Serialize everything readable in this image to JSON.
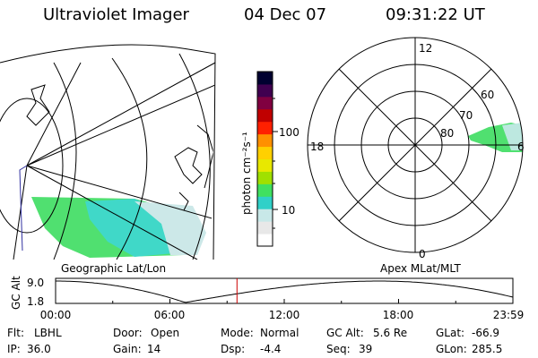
{
  "header": {
    "title": "Ultraviolet Imager",
    "date": "04 Dec 07",
    "time": "09:31:22 UT"
  },
  "colorbar": {
    "label": "photon cm⁻²s⁻¹",
    "ticks": [
      "100",
      "10"
    ],
    "scale": "log",
    "colors": [
      "#ffffff",
      "#e8e8e8",
      "#c8e8e8",
      "#30d0c8",
      "#40e060",
      "#a0e000",
      "#e8e800",
      "#ffd000",
      "#ff9000",
      "#ff2000",
      "#c00000",
      "#800040",
      "#400050",
      "#000030"
    ]
  },
  "geo_panel": {
    "label": "Geographic Lat/Lon",
    "emission_color": "#50e070",
    "emission_color2": "#40d8c8"
  },
  "polar_panel": {
    "label": "Apex MLat/MLT",
    "mlt_labels": {
      "top": "12",
      "left": "18",
      "right": "6",
      "bottom": "0"
    },
    "lat_labels": [
      "60",
      "70",
      "80"
    ]
  },
  "orbit_plot": {
    "y_axis_label": "GC Alt",
    "y_ticks": [
      "9.0",
      "1.8"
    ],
    "x_ticks": [
      "00:00",
      "06:00",
      "12:00",
      "18:00",
      "23:59"
    ],
    "current_time_hours": 9.52,
    "marker_color": "#cc0000"
  },
  "info": {
    "flt_label": "Flt:",
    "flt_value": "LBHL",
    "door_label": "Door:",
    "door_value": "Open",
    "mode_label": "Mode:",
    "mode_value": "Normal",
    "gcalt_label": "GC Alt:",
    "gcalt_value": "5.6 Re",
    "glat_label": "GLat:",
    "glat_value": "-66.9",
    "ip_label": "IP:",
    "ip_value": "36.0",
    "gain_label": "Gain:",
    "gain_value": "14",
    "dsp_label": "Dsp:",
    "dsp_value": "-4.4",
    "seq_label": "Seq:",
    "seq_value": "39",
    "glon_label": "GLon:",
    "glon_value": "285.5"
  }
}
